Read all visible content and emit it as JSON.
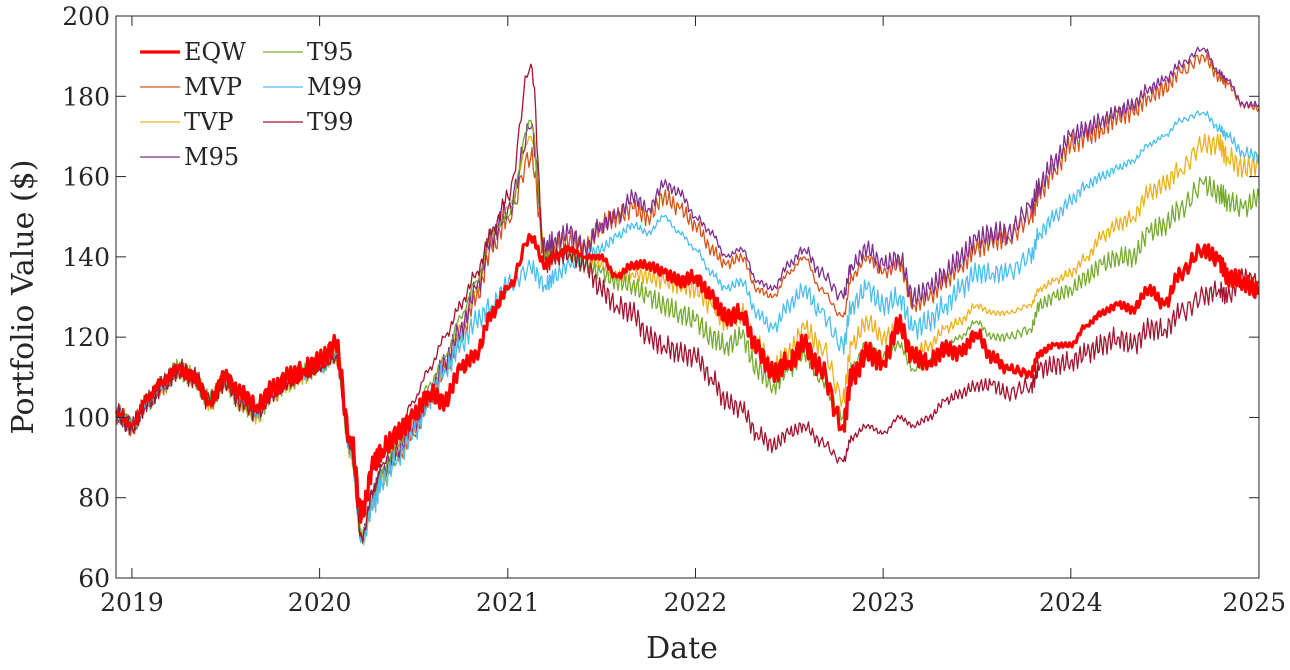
{
  "chart_data": {
    "type": "line",
    "title": "",
    "xlabel": "Date",
    "ylabel": "Portfolio Value ($)",
    "ylim": [
      60,
      200
    ],
    "yticks": [
      60,
      80,
      100,
      120,
      140,
      160,
      180,
      200
    ],
    "xlim": [
      "2018-12-01",
      "2025-01-01"
    ],
    "xticks": [
      "2019",
      "2020",
      "2021",
      "2022",
      "2023",
      "2024",
      "2025"
    ],
    "grid": false,
    "legend_position": "top-left",
    "x": [
      "2018-12-01",
      "2019-01-01",
      "2019-02-01",
      "2019-03-01",
      "2019-04-01",
      "2019-05-01",
      "2019-06-01",
      "2019-07-01",
      "2019-08-01",
      "2019-09-01",
      "2019-10-01",
      "2019-11-01",
      "2019-12-01",
      "2020-01-01",
      "2020-02-01",
      "2020-03-01",
      "2020-03-23",
      "2020-04-15",
      "2020-05-01",
      "2020-06-01",
      "2020-07-01",
      "2020-08-01",
      "2020-09-01",
      "2020-10-01",
      "2020-11-01",
      "2020-12-01",
      "2021-01-01",
      "2021-02-15",
      "2021-03-15",
      "2021-04-01",
      "2021-05-01",
      "2021-06-01",
      "2021-07-01",
      "2021-08-01",
      "2021-09-01",
      "2021-10-01",
      "2021-11-01",
      "2021-12-01",
      "2022-01-01",
      "2022-02-01",
      "2022-03-01",
      "2022-04-01",
      "2022-05-01",
      "2022-06-01",
      "2022-07-01",
      "2022-08-01",
      "2022-09-01",
      "2022-10-15",
      "2022-11-01",
      "2022-12-01",
      "2023-01-01",
      "2023-02-01",
      "2023-03-01",
      "2023-04-01",
      "2023-05-01",
      "2023-06-01",
      "2023-07-01",
      "2023-08-01",
      "2023-09-01",
      "2023-10-15",
      "2023-11-01",
      "2023-12-01",
      "2024-01-01",
      "2024-02-01",
      "2024-03-01",
      "2024-04-01",
      "2024-05-01",
      "2024-06-01",
      "2024-07-01",
      "2024-08-01",
      "2024-09-15",
      "2024-10-15",
      "2024-11-01",
      "2024-12-01",
      "2025-01-01"
    ],
    "series": [
      {
        "name": "EQW",
        "color": "#ff0000",
        "width": 3.2,
        "values": [
          101,
          98,
          105,
          109,
          112,
          110,
          104,
          110,
          106,
          103,
          107,
          110,
          112,
          114,
          118,
          95,
          76,
          88,
          92,
          96,
          100,
          106,
          104,
          112,
          116,
          126,
          132,
          145,
          138,
          140,
          142,
          140,
          140,
          135,
          138,
          138,
          136,
          134,
          135,
          130,
          125,
          126,
          117,
          111,
          114,
          118,
          112,
          98,
          110,
          116,
          114,
          123,
          115,
          114,
          117,
          116,
          121,
          115,
          112,
          111,
          116,
          118,
          118,
          123,
          126,
          128,
          127,
          132,
          128,
          136,
          142,
          139,
          135,
          134,
          131
        ]
      },
      {
        "name": "MVP",
        "color": "#d95319",
        "width": 1.3,
        "values": [
          101,
          98,
          104,
          108,
          112,
          110,
          104,
          109,
          104,
          101,
          106,
          109,
          111,
          113,
          116,
          92,
          70,
          80,
          85,
          90,
          96,
          104,
          112,
          120,
          130,
          142,
          150,
          165,
          140,
          143,
          144,
          142,
          148,
          150,
          152,
          150,
          155,
          152,
          148,
          142,
          138,
          140,
          132,
          130,
          136,
          140,
          132,
          125,
          135,
          140,
          136,
          138,
          128,
          130,
          134,
          138,
          142,
          144,
          145,
          150,
          156,
          162,
          168,
          170,
          172,
          175,
          176,
          180,
          182,
          186,
          190,
          185,
          183,
          178,
          177
        ]
      },
      {
        "name": "TVP",
        "color": "#edb120",
        "width": 1.3,
        "values": [
          101,
          98,
          104,
          108,
          112,
          110,
          104,
          109,
          104,
          101,
          106,
          109,
          111,
          113,
          116,
          92,
          70,
          80,
          85,
          92,
          98,
          105,
          112,
          122,
          132,
          145,
          152,
          170,
          142,
          140,
          142,
          140,
          138,
          135,
          136,
          135,
          134,
          133,
          132,
          128,
          124,
          126,
          118,
          112,
          116,
          122,
          118,
          105,
          118,
          124,
          120,
          122,
          116,
          118,
          122,
          124,
          128,
          126,
          126,
          128,
          132,
          134,
          136,
          140,
          145,
          148,
          150,
          156,
          158,
          162,
          168,
          168,
          165,
          162,
          163
        ]
      },
      {
        "name": "M95",
        "color": "#7e2f8e",
        "width": 1.3,
        "values": [
          101,
          98,
          104,
          108,
          112,
          110,
          104,
          109,
          104,
          101,
          106,
          109,
          111,
          113,
          116,
          92,
          70,
          82,
          86,
          92,
          98,
          105,
          114,
          122,
          132,
          145,
          152,
          172,
          142,
          144,
          146,
          142,
          148,
          150,
          155,
          152,
          158,
          156,
          150,
          146,
          140,
          142,
          134,
          132,
          138,
          142,
          136,
          130,
          138,
          142,
          138,
          140,
          130,
          132,
          136,
          140,
          144,
          146,
          146,
          152,
          158,
          164,
          170,
          172,
          174,
          176,
          178,
          182,
          184,
          188,
          192,
          186,
          184,
          178,
          178
        ]
      },
      {
        "name": "T95",
        "color": "#77ac30",
        "width": 1.3,
        "values": [
          101,
          98,
          104,
          108,
          112,
          110,
          104,
          109,
          104,
          101,
          106,
          109,
          111,
          113,
          116,
          92,
          70,
          80,
          86,
          93,
          100,
          108,
          115,
          125,
          134,
          146,
          150,
          174,
          140,
          140,
          141,
          138,
          136,
          134,
          133,
          130,
          128,
          126,
          124,
          120,
          118,
          120,
          112,
          108,
          112,
          116,
          110,
          100,
          112,
          118,
          115,
          118,
          112,
          114,
          118,
          120,
          124,
          120,
          120,
          122,
          128,
          130,
          132,
          135,
          138,
          140,
          140,
          146,
          148,
          152,
          158,
          156,
          154,
          152,
          155
        ]
      },
      {
        "name": "M99",
        "color": "#4dbeee",
        "width": 1.3,
        "values": [
          101,
          98,
          104,
          108,
          112,
          110,
          104,
          109,
          104,
          101,
          106,
          109,
          111,
          113,
          115,
          92,
          70,
          78,
          84,
          90,
          96,
          104,
          112,
          118,
          124,
          128,
          133,
          137,
          133,
          135,
          138,
          140,
          142,
          145,
          148,
          146,
          150,
          146,
          142,
          136,
          132,
          134,
          126,
          122,
          128,
          132,
          126,
          118,
          128,
          132,
          128,
          130,
          122,
          124,
          128,
          132,
          136,
          136,
          136,
          140,
          146,
          150,
          154,
          158,
          160,
          162,
          164,
          168,
          170,
          174,
          176,
          172,
          170,
          166,
          165
        ]
      },
      {
        "name": "T99",
        "color": "#a2142f",
        "width": 1.3,
        "values": [
          101,
          98,
          104,
          108,
          112,
          110,
          104,
          109,
          104,
          101,
          106,
          109,
          111,
          113,
          115,
          92,
          70,
          82,
          88,
          96,
          104,
          112,
          120,
          128,
          136,
          146,
          155,
          188,
          138,
          140,
          141,
          138,
          132,
          128,
          126,
          120,
          118,
          116,
          115,
          110,
          104,
          102,
          96,
          93,
          96,
          98,
          94,
          89,
          95,
          98,
          96,
          100,
          98,
          100,
          104,
          106,
          108,
          108,
          106,
          108,
          112,
          113,
          114,
          116,
          118,
          120,
          118,
          122,
          122,
          126,
          130,
          132,
          130,
          135,
          134
        ]
      }
    ]
  }
}
